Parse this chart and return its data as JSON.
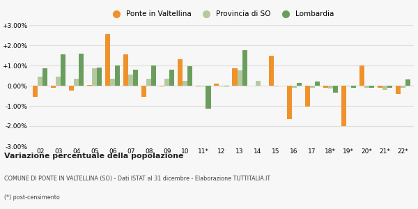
{
  "categories": [
    "02",
    "03",
    "04",
    "05",
    "06",
    "07",
    "08",
    "09",
    "10",
    "11*",
    "12",
    "13",
    "14",
    "15",
    "16",
    "17",
    "18*",
    "19*",
    "20*",
    "21*",
    "22*"
  ],
  "ponte": [
    -0.55,
    -0.1,
    -0.25,
    0.05,
    2.55,
    1.55,
    -0.55,
    -0.05,
    1.3,
    -0.05,
    0.12,
    0.85,
    0.0,
    1.5,
    -1.65,
    -1.05,
    -0.1,
    -2.0,
    1.0,
    -0.1,
    -0.4
  ],
  "provincia": [
    0.45,
    0.45,
    0.35,
    0.85,
    0.35,
    0.55,
    0.35,
    0.35,
    0.25,
    -0.05,
    -0.05,
    0.75,
    0.25,
    -0.05,
    -0.1,
    -0.1,
    -0.15,
    -0.05,
    -0.1,
    -0.2,
    -0.1
  ],
  "lombardia": [
    0.85,
    1.55,
    1.6,
    0.9,
    1.0,
    0.8,
    1.0,
    0.8,
    0.95,
    -1.15,
    -0.05,
    1.75,
    0.0,
    0.0,
    0.15,
    0.2,
    -0.35,
    -0.1,
    -0.1,
    -0.1,
    0.3
  ],
  "color_ponte": "#f0922b",
  "color_provincia": "#b5c9a0",
  "color_lombardia": "#6b9e5e",
  "title_bold": "Variazione percentuale della popolazione",
  "subtitle": "COMUNE DI PONTE IN VALTELLINA (SO) - Dati ISTAT al 31 dicembre - Elaborazione TUTTITALIA.IT",
  "footnote": "(*) post-censimento",
  "legend_labels": [
    "Ponte in Valtellina",
    "Provincia di SO",
    "Lombardia"
  ],
  "ylim": [
    -3.0,
    3.0
  ],
  "yticks": [
    -3.0,
    -2.0,
    -1.0,
    0.0,
    1.0,
    2.0,
    3.0
  ],
  "ytick_labels": [
    "-3.00%",
    "-2.00%",
    "-1.00%",
    "0.00%",
    "+1.00%",
    "+2.00%",
    "+3.00%"
  ],
  "background_color": "#f7f7f7",
  "grid_color": "#dddddd"
}
